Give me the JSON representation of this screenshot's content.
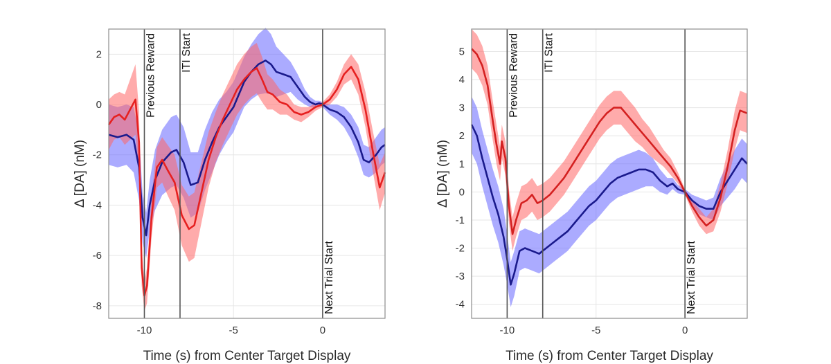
{
  "chart_data": [
    {
      "type": "line",
      "xlabel": "Time (s) from Center Target Display",
      "ylabel": "Δ [DA] (nM)",
      "xlim": [
        -12,
        3.5
      ],
      "ylim": [
        -8.5,
        3
      ],
      "xticks": [
        -10,
        -5,
        0
      ],
      "xtick_labels": [
        "-10",
        "-5",
        "0"
      ],
      "yticks": [
        -8,
        -6,
        -4,
        -2,
        0,
        2
      ],
      "ytick_labels": [
        "-8",
        "-6",
        "-4",
        "-2",
        "0",
        "2"
      ],
      "grid": true,
      "events": [
        {
          "x": -10,
          "label": "Previous Reward",
          "label_anchor": "top"
        },
        {
          "x": -8,
          "label": "ITI Start",
          "label_anchor": "top"
        },
        {
          "x": 0,
          "label": "Next Trial Start",
          "label_anchor": "bottom"
        }
      ],
      "series": [
        {
          "name": "blue",
          "color": "#1a1a8c",
          "band_color": "#6666ff",
          "points": [
            [
              -12,
              -1.2
            ],
            [
              -11.5,
              -1.3
            ],
            [
              -11,
              -1.2
            ],
            [
              -10.6,
              -1.4
            ],
            [
              -10.3,
              -2.5
            ],
            [
              -10.1,
              -4.5
            ],
            [
              -9.9,
              -5.2
            ],
            [
              -9.7,
              -4.0
            ],
            [
              -9.4,
              -3.0
            ],
            [
              -9.0,
              -2.3
            ],
            [
              -8.5,
              -1.9
            ],
            [
              -8.2,
              -1.8
            ],
            [
              -7.8,
              -2.3
            ],
            [
              -7.4,
              -3.2
            ],
            [
              -7.0,
              -3.1
            ],
            [
              -6.6,
              -2.2
            ],
            [
              -6.2,
              -1.5
            ],
            [
              -5.8,
              -0.9
            ],
            [
              -5.4,
              -0.5
            ],
            [
              -5.0,
              -0.1
            ],
            [
              -4.7,
              0.4
            ],
            [
              -4.4,
              0.9
            ],
            [
              -4.0,
              1.3
            ],
            [
              -3.6,
              1.6
            ],
            [
              -3.2,
              1.75
            ],
            [
              -2.9,
              1.6
            ],
            [
              -2.6,
              1.3
            ],
            [
              -2.2,
              1.2
            ],
            [
              -1.8,
              1.1
            ],
            [
              -1.4,
              0.7
            ],
            [
              -1.0,
              0.3
            ],
            [
              -0.7,
              0.1
            ],
            [
              -0.4,
              0.0
            ],
            [
              -0.2,
              0.05
            ],
            [
              0.0,
              0.0
            ],
            [
              0.4,
              -0.2
            ],
            [
              0.8,
              -0.3
            ],
            [
              1.2,
              -0.5
            ],
            [
              1.6,
              -0.9
            ],
            [
              2.0,
              -1.5
            ],
            [
              2.3,
              -2.2
            ],
            [
              2.6,
              -2.3
            ],
            [
              3.0,
              -2.0
            ],
            [
              3.3,
              -1.7
            ],
            [
              3.5,
              -1.6
            ]
          ],
          "band_halfwidth": [
            1.2,
            1.2,
            1.2,
            1.3,
            1.3,
            1.0,
            0.9,
            1.0,
            1.2,
            1.3,
            1.4,
            1.4,
            1.4,
            1.3,
            1.2,
            1.2,
            1.2,
            1.1,
            1.0,
            1.0,
            1.0,
            1.0,
            1.1,
            1.2,
            1.3,
            1.2,
            1.0,
            0.8,
            0.6,
            0.5,
            0.3,
            0.2,
            0.15,
            0.1,
            0.1,
            0.2,
            0.3,
            0.4,
            0.5,
            0.6,
            0.6,
            0.6,
            0.7,
            0.7,
            0.7
          ]
        },
        {
          "name": "red",
          "color": "#e62020",
          "band_color": "#ff6666",
          "points": [
            [
              -12,
              -0.8
            ],
            [
              -11.7,
              -0.5
            ],
            [
              -11.4,
              -0.4
            ],
            [
              -11.1,
              -0.6
            ],
            [
              -10.8,
              -0.2
            ],
            [
              -10.5,
              0.2
            ],
            [
              -10.3,
              -1.5
            ],
            [
              -10.15,
              -6.5
            ],
            [
              -10.0,
              -7.6
            ],
            [
              -9.85,
              -7.2
            ],
            [
              -9.6,
              -4.5
            ],
            [
              -9.3,
              -2.5
            ],
            [
              -9.0,
              -2.2
            ],
            [
              -8.7,
              -2.6
            ],
            [
              -8.3,
              -3.1
            ],
            [
              -7.9,
              -4.4
            ],
            [
              -7.5,
              -4.95
            ],
            [
              -7.2,
              -4.8
            ],
            [
              -6.8,
              -3.5
            ],
            [
              -6.4,
              -2.2
            ],
            [
              -6.0,
              -1.3
            ],
            [
              -5.6,
              -0.6
            ],
            [
              -5.2,
              0.0
            ],
            [
              -4.8,
              0.6
            ],
            [
              -4.4,
              1.0
            ],
            [
              -4.0,
              1.3
            ],
            [
              -3.7,
              1.45
            ],
            [
              -3.4,
              1.0
            ],
            [
              -3.1,
              0.5
            ],
            [
              -2.8,
              0.4
            ],
            [
              -2.4,
              0.1
            ],
            [
              -2.0,
              0.0
            ],
            [
              -1.6,
              -0.3
            ],
            [
              -1.2,
              -0.4
            ],
            [
              -0.8,
              -0.3
            ],
            [
              -0.4,
              -0.1
            ],
            [
              0.0,
              0.0
            ],
            [
              0.4,
              0.2
            ],
            [
              0.8,
              0.6
            ],
            [
              1.2,
              1.2
            ],
            [
              1.6,
              1.5
            ],
            [
              2.0,
              1.0
            ],
            [
              2.4,
              -0.2
            ],
            [
              2.8,
              -1.8
            ],
            [
              3.2,
              -3.3
            ],
            [
              3.5,
              -2.7
            ]
          ],
          "band_halfwidth": [
            1.0,
            0.9,
            0.9,
            1.0,
            1.2,
            1.4,
            1.2,
            0.7,
            0.6,
            0.7,
            0.8,
            0.8,
            0.9,
            1.0,
            1.1,
            1.2,
            1.3,
            1.3,
            1.2,
            1.1,
            1.0,
            1.0,
            1.0,
            1.0,
            1.0,
            1.0,
            1.0,
            0.9,
            0.7,
            0.6,
            0.5,
            0.4,
            0.3,
            0.3,
            0.2,
            0.15,
            0.1,
            0.2,
            0.3,
            0.4,
            0.5,
            0.6,
            0.7,
            0.8,
            0.9,
            0.8
          ]
        }
      ]
    },
    {
      "type": "line",
      "xlabel": "Time (s) from Center Target Display",
      "ylabel": "Δ [DA] (nM)",
      "xlim": [
        -12,
        3.5
      ],
      "ylim": [
        -4.5,
        5.8
      ],
      "xticks": [
        -10,
        -5,
        0
      ],
      "xtick_labels": [
        "-10",
        "-5",
        "0"
      ],
      "yticks": [
        -4,
        -3,
        -2,
        -1,
        0,
        1,
        2,
        3,
        4,
        5
      ],
      "ytick_labels": [
        "-4",
        "-3",
        "-2",
        "-1",
        "0",
        "1",
        "2",
        "3",
        "4",
        "5"
      ],
      "grid": true,
      "events": [
        {
          "x": -10,
          "label": "Previous Reward",
          "label_anchor": "top"
        },
        {
          "x": -8,
          "label": "ITI Start",
          "label_anchor": "top"
        },
        {
          "x": 0,
          "label": "Next Trial Start",
          "label_anchor": "bottom"
        }
      ],
      "series": [
        {
          "name": "blue",
          "color": "#1a1a8c",
          "band_color": "#6666ff",
          "points": [
            [
              -12,
              2.4
            ],
            [
              -11.7,
              2.0
            ],
            [
              -11.4,
              1.2
            ],
            [
              -11.1,
              0.5
            ],
            [
              -10.8,
              -0.2
            ],
            [
              -10.5,
              -0.8
            ],
            [
              -10.2,
              -1.6
            ],
            [
              -10.0,
              -2.4
            ],
            [
              -9.8,
              -3.3
            ],
            [
              -9.6,
              -2.9
            ],
            [
              -9.3,
              -2.1
            ],
            [
              -9.0,
              -2.0
            ],
            [
              -8.6,
              -2.1
            ],
            [
              -8.2,
              -2.2
            ],
            [
              -7.8,
              -2.0
            ],
            [
              -7.4,
              -1.8
            ],
            [
              -7.0,
              -1.6
            ],
            [
              -6.6,
              -1.4
            ],
            [
              -6.2,
              -1.1
            ],
            [
              -5.8,
              -0.8
            ],
            [
              -5.4,
              -0.5
            ],
            [
              -5.0,
              -0.3
            ],
            [
              -4.6,
              0.0
            ],
            [
              -4.2,
              0.3
            ],
            [
              -3.8,
              0.5
            ],
            [
              -3.4,
              0.6
            ],
            [
              -3.0,
              0.7
            ],
            [
              -2.6,
              0.8
            ],
            [
              -2.2,
              0.8
            ],
            [
              -1.8,
              0.7
            ],
            [
              -1.4,
              0.4
            ],
            [
              -1.0,
              0.2
            ],
            [
              -0.7,
              0.3
            ],
            [
              -0.4,
              0.1
            ],
            [
              0.0,
              0.0
            ],
            [
              0.4,
              -0.3
            ],
            [
              0.8,
              -0.5
            ],
            [
              1.2,
              -0.6
            ],
            [
              1.6,
              -0.6
            ],
            [
              2.0,
              0.0
            ],
            [
              2.4,
              0.4
            ],
            [
              2.8,
              0.8
            ],
            [
              3.2,
              1.2
            ],
            [
              3.5,
              1.0
            ]
          ],
          "band_halfwidth": [
            1.0,
            1.0,
            1.0,
            1.0,
            1.0,
            1.0,
            1.0,
            0.9,
            0.8,
            0.8,
            0.7,
            0.7,
            0.7,
            0.7,
            0.7,
            0.7,
            0.7,
            0.7,
            0.7,
            0.7,
            0.7,
            0.7,
            0.7,
            0.7,
            0.7,
            0.7,
            0.7,
            0.7,
            0.6,
            0.5,
            0.4,
            0.3,
            0.2,
            0.15,
            0.1,
            0.2,
            0.3,
            0.3,
            0.4,
            0.5,
            0.6,
            0.7,
            0.7,
            0.7
          ]
        },
        {
          "name": "red",
          "color": "#d42020",
          "band_color": "#ff6666",
          "points": [
            [
              -12,
              5.1
            ],
            [
              -11.7,
              4.9
            ],
            [
              -11.4,
              4.5
            ],
            [
              -11.1,
              3.8
            ],
            [
              -10.8,
              2.5
            ],
            [
              -10.6,
              1.7
            ],
            [
              -10.4,
              1.0
            ],
            [
              -10.3,
              1.8
            ],
            [
              -10.1,
              1.2
            ],
            [
              -9.9,
              -0.5
            ],
            [
              -9.7,
              -1.5
            ],
            [
              -9.5,
              -1.0
            ],
            [
              -9.2,
              -0.4
            ],
            [
              -8.9,
              -0.3
            ],
            [
              -8.6,
              -0.1
            ],
            [
              -8.3,
              -0.4
            ],
            [
              -8.0,
              -0.3
            ],
            [
              -7.6,
              -0.1
            ],
            [
              -7.2,
              0.2
            ],
            [
              -6.8,
              0.5
            ],
            [
              -6.4,
              0.9
            ],
            [
              -6.0,
              1.3
            ],
            [
              -5.6,
              1.7
            ],
            [
              -5.2,
              2.1
            ],
            [
              -4.8,
              2.5
            ],
            [
              -4.4,
              2.8
            ],
            [
              -4.0,
              3.0
            ],
            [
              -3.6,
              3.0
            ],
            [
              -3.2,
              2.7
            ],
            [
              -2.8,
              2.4
            ],
            [
              -2.4,
              2.1
            ],
            [
              -2.0,
              1.8
            ],
            [
              -1.6,
              1.5
            ],
            [
              -1.2,
              1.2
            ],
            [
              -0.8,
              0.9
            ],
            [
              -0.4,
              0.5
            ],
            [
              0.0,
              0.0
            ],
            [
              0.4,
              -0.5
            ],
            [
              0.8,
              -0.9
            ],
            [
              1.2,
              -1.2
            ],
            [
              1.6,
              -1.0
            ],
            [
              2.0,
              -0.2
            ],
            [
              2.4,
              0.9
            ],
            [
              2.8,
              2.2
            ],
            [
              3.1,
              2.9
            ],
            [
              3.5,
              2.8
            ]
          ],
          "band_halfwidth": [
            0.7,
            0.7,
            0.7,
            0.7,
            0.7,
            0.7,
            0.6,
            0.6,
            0.6,
            0.6,
            0.6,
            0.6,
            0.6,
            0.6,
            0.6,
            0.6,
            0.6,
            0.6,
            0.6,
            0.6,
            0.6,
            0.6,
            0.6,
            0.6,
            0.6,
            0.6,
            0.6,
            0.6,
            0.6,
            0.6,
            0.5,
            0.5,
            0.4,
            0.3,
            0.3,
            0.2,
            0.1,
            0.2,
            0.3,
            0.3,
            0.4,
            0.5,
            0.6,
            0.7,
            0.7,
            0.7
          ]
        }
      ]
    }
  ]
}
